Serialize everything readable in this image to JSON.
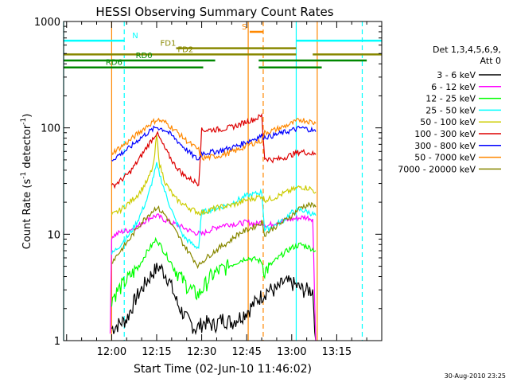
{
  "chart_data": {
    "type": "line",
    "title": "HESSI Observing Summary Count Rates",
    "xlabel": "Start Time (02-Jun-10 11:46:02)",
    "ylabel_main": "Count Rate (s",
    "ylabel_sup": "-1",
    "ylabel_tail": " detector",
    "ylabel_sup2": "-1",
    "ylabel_end": ")",
    "yscale": "log",
    "xlim_min": [
      -16,
      90
    ],
    "ylim": [
      1,
      1000
    ],
    "x_ticks": [
      {
        "min": 0,
        "label": "12:00"
      },
      {
        "min": 15,
        "label": "12:15"
      },
      {
        "min": 30,
        "label": "12:30"
      },
      {
        "min": 45,
        "label": "12:45"
      },
      {
        "min": 60,
        "label": "13:00"
      },
      {
        "min": 75,
        "label": "13:15"
      }
    ],
    "y_ticks": [
      {
        "value": 1,
        "label": "1"
      },
      {
        "value": 10,
        "label": "10"
      },
      {
        "value": 100,
        "label": "100"
      },
      {
        "value": 1000,
        "label": "1000"
      }
    ],
    "legend_header": [
      "Det 1,3,4,5,6,9,",
      "Att 0"
    ],
    "legend_position": "right",
    "series": [
      {
        "name": "3 - 6 keV",
        "color": "#000000",
        "x": [
          0,
          5,
          8,
          11,
          14,
          16,
          19,
          22,
          25,
          28,
          31,
          34,
          37,
          40,
          43,
          46,
          49,
          52,
          55,
          57,
          60,
          62,
          64,
          66,
          67,
          68
        ],
        "y": [
          1.3,
          1.6,
          2.5,
          3.4,
          4.5,
          5.0,
          3.8,
          2.2,
          1.6,
          1.3,
          1.5,
          1.4,
          1.6,
          1.5,
          1.7,
          2.0,
          2.5,
          3.0,
          3.0,
          3.5,
          3.5,
          3.2,
          3.0,
          3.0,
          3.0,
          1.0
        ]
      },
      {
        "name": "6 - 12 keV",
        "color": "#ff00ff",
        "x": [
          -0.5,
          0,
          3,
          6,
          9,
          12,
          15,
          18,
          21,
          24,
          27,
          30,
          33,
          36,
          39,
          42,
          45,
          48,
          50,
          52,
          55,
          58,
          61,
          64,
          67,
          68
        ],
        "y": [
          1.0,
          9.5,
          10.5,
          11,
          12,
          14,
          15,
          13.5,
          12.5,
          11.5,
          10.5,
          10,
          11,
          12,
          12.5,
          12.5,
          13,
          12.5,
          13,
          12,
          13,
          13.5,
          14,
          14.5,
          14,
          1.0
        ]
      },
      {
        "name": "12 - 25 keV",
        "color": "#00ff00",
        "x": [
          0,
          3,
          6,
          9,
          12,
          15,
          18,
          21,
          24,
          27,
          29,
          30,
          33,
          36,
          39,
          42,
          45,
          48,
          50,
          51,
          54,
          57,
          60,
          63,
          66,
          68
        ],
        "y": [
          2.5,
          3.2,
          4,
          5,
          7,
          9,
          6.5,
          4.8,
          3.6,
          2.9,
          2.7,
          3.0,
          4.0,
          4.6,
          5.0,
          5.5,
          6.0,
          5.8,
          5.5,
          4.5,
          5.5,
          6.5,
          7.5,
          8.0,
          7.5,
          7.0
        ]
      },
      {
        "name": "25 - 50 keV",
        "color": "#00ffff",
        "x": [
          0,
          3,
          6,
          9,
          12,
          15,
          18,
          21,
          24,
          27,
          29,
          30,
          33,
          36,
          39,
          42,
          45,
          48,
          50,
          51,
          54,
          57,
          60,
          63,
          66,
          68
        ],
        "y": [
          6.5,
          8,
          10,
          14,
          22,
          45,
          24,
          14,
          9.5,
          8,
          7.5,
          16,
          17,
          18,
          19,
          21,
          23,
          24,
          25,
          11,
          12,
          13.5,
          16,
          17,
          16,
          15
        ]
      },
      {
        "name": "50 - 100 keV",
        "color": "#cccc00",
        "x": [
          0,
          3,
          6,
          9,
          12,
          14,
          15,
          16,
          18,
          21,
          24,
          27,
          29,
          30,
          33,
          36,
          39,
          42,
          45,
          48,
          50,
          51,
          54,
          57,
          60,
          63,
          66,
          68
        ],
        "y": [
          15,
          17,
          20,
          24,
          32,
          45,
          85,
          45,
          30,
          22,
          19,
          17,
          16,
          16,
          17,
          18,
          18.5,
          19.5,
          21,
          22,
          23,
          21,
          22,
          24,
          26,
          28,
          27,
          25
        ]
      },
      {
        "name": "100 - 300 keV",
        "color": "#dd0000",
        "x": [
          0,
          3,
          6,
          9,
          12,
          15,
          18,
          21,
          24,
          27,
          29,
          30,
          33,
          36,
          39,
          42,
          45,
          48,
          50,
          51,
          54,
          57,
          60,
          63,
          66,
          68
        ],
        "y": [
          28,
          32,
          38,
          50,
          68,
          90,
          62,
          45,
          36,
          32,
          30,
          95,
          96,
          97,
          100,
          106,
          115,
          122,
          130,
          52,
          50,
          52,
          56,
          60,
          58,
          56
        ]
      },
      {
        "name": "300 - 800 keV",
        "color": "#0000ff",
        "x": [
          0,
          3,
          6,
          9,
          12,
          15,
          18,
          21,
          24,
          27,
          29,
          30,
          33,
          36,
          39,
          42,
          45,
          48,
          50,
          51,
          54,
          57,
          60,
          63,
          66,
          68
        ],
        "y": [
          50,
          57,
          65,
          78,
          90,
          102,
          95,
          80,
          66,
          55,
          50,
          58,
          59,
          61,
          64,
          68,
          74,
          80,
          84,
          82,
          85,
          90,
          95,
          100,
          97,
          92
        ]
      },
      {
        "name": "50 - 7000 keV",
        "color": "#ff8800",
        "x": [
          0,
          3,
          6,
          9,
          12,
          15,
          18,
          21,
          24,
          27,
          29,
          30,
          33,
          36,
          39,
          42,
          45,
          48,
          50,
          51,
          54,
          57,
          60,
          63,
          66,
          68
        ],
        "y": [
          58,
          66,
          76,
          90,
          105,
          120,
          112,
          96,
          80,
          68,
          62,
          52,
          53,
          55,
          58,
          62,
          68,
          73,
          76,
          90,
          95,
          102,
          110,
          120,
          115,
          110
        ]
      },
      {
        "name": "7000 - 20000 keV",
        "color": "#888800",
        "x": [
          0,
          3,
          6,
          9,
          12,
          15,
          18,
          21,
          24,
          27,
          29,
          30,
          33,
          36,
          39,
          42,
          45,
          48,
          50,
          51,
          54,
          57,
          60,
          63,
          66,
          68
        ],
        "y": [
          5.5,
          7,
          9,
          12,
          15,
          18,
          15,
          11,
          8,
          6,
          5,
          5.5,
          6.5,
          7.5,
          8.5,
          10,
          11,
          12,
          13,
          10,
          11.5,
          13,
          15,
          18,
          19,
          18
        ]
      }
    ],
    "annotations": {
      "vlines": [
        {
          "x": -16,
          "color": "#00ffff",
          "style": "solid"
        },
        {
          "x": 4.2,
          "color": "#00ffff",
          "style": "dashed"
        },
        {
          "x": 61.5,
          "color": "#00ffff",
          "style": "solid"
        },
        {
          "x": 83.5,
          "color": "#00ffff",
          "style": "dashed"
        },
        {
          "x": 45.5,
          "color": "#ff8800",
          "style": "solid"
        },
        {
          "x": 50.5,
          "color": "#ff8800",
          "style": "dashed"
        },
        {
          "x": 0,
          "color": "#ff8800",
          "style": "solid"
        },
        {
          "x": 68.5,
          "color": "#ff8800",
          "style": "solid"
        }
      ],
      "bars": [
        {
          "label": "N",
          "color": "#00ffff",
          "segments": [
            [
              -16,
              4.2
            ],
            [
              61.5,
              90
            ]
          ],
          "y": 660
        },
        {
          "label": "S",
          "color": "#ff8800",
          "segments": [
            [
              46,
              50.5
            ]
          ],
          "y": 800
        },
        {
          "label": "FD1",
          "color": "#888800",
          "segments": [
            [
              21.5,
              61.5
            ]
          ],
          "y": 560
        },
        {
          "label": "FD2",
          "color": "#888800",
          "segments": [
            [
              -16,
              61.5
            ],
            [
              67,
              90
            ]
          ],
          "y": 490
        },
        {
          "label": "RD0",
          "color": "#008800",
          "segments": [
            [
              -16,
              34.5
            ],
            [
              49,
              85
            ]
          ],
          "y": 430
        },
        {
          "label": "RD6",
          "color": "#008800",
          "segments": [
            [
              -16,
              30.5
            ],
            [
              49,
              70
            ]
          ],
          "y": 370
        }
      ]
    },
    "footer_timestamp": "30-Aug-2010 23:25"
  }
}
